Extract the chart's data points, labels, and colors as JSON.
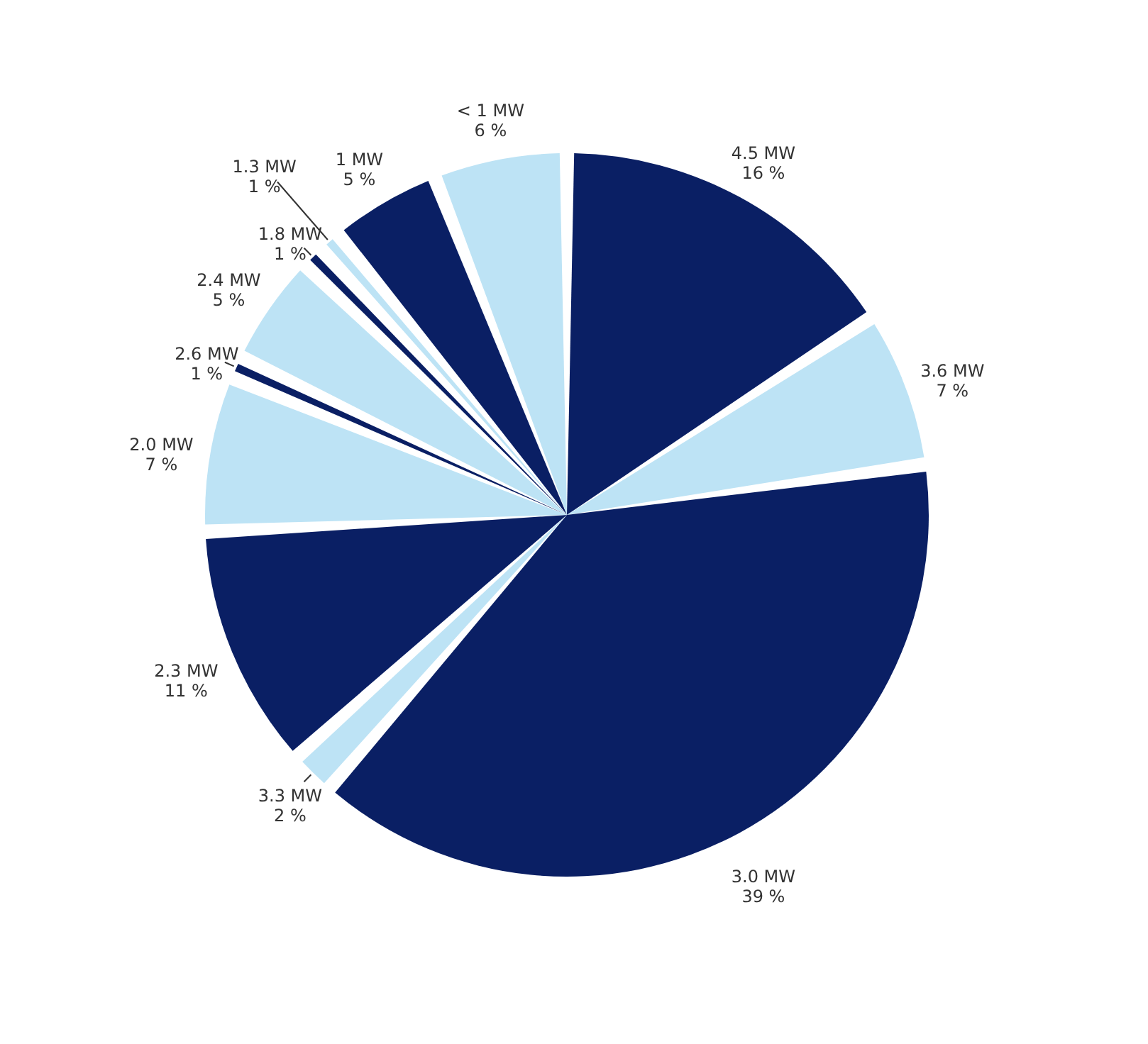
{
  "chart_data": {
    "type": "pie",
    "categories": [
      "4.5 MW",
      "3.6 MW",
      "3.0 MW",
      "3.3 MW",
      "2.3 MW",
      "2.0 MW",
      "2.6 MW",
      "2.4 MW",
      "1.8 MW",
      "1.3 MW",
      "1 MW",
      "< 1 MW"
    ],
    "values": [
      16,
      7,
      39,
      2,
      11,
      7,
      1,
      5,
      1,
      1,
      5,
      6
    ],
    "value_labels": [
      "16 %",
      "7 %",
      "39 %",
      "2 %",
      "11 %",
      "7 %",
      "1 %",
      "5 %",
      "1 %",
      "1 %",
      "5 %",
      "6 %"
    ],
    "colors": [
      "#0a1f64",
      "#bde3f5",
      "#0a1f64",
      "#bde3f5",
      "#0a1f64",
      "#bde3f5",
      "#0a1f64",
      "#bde3f5",
      "#0a1f64",
      "#bde3f5",
      "#0a1f64",
      "#bde3f5"
    ]
  }
}
